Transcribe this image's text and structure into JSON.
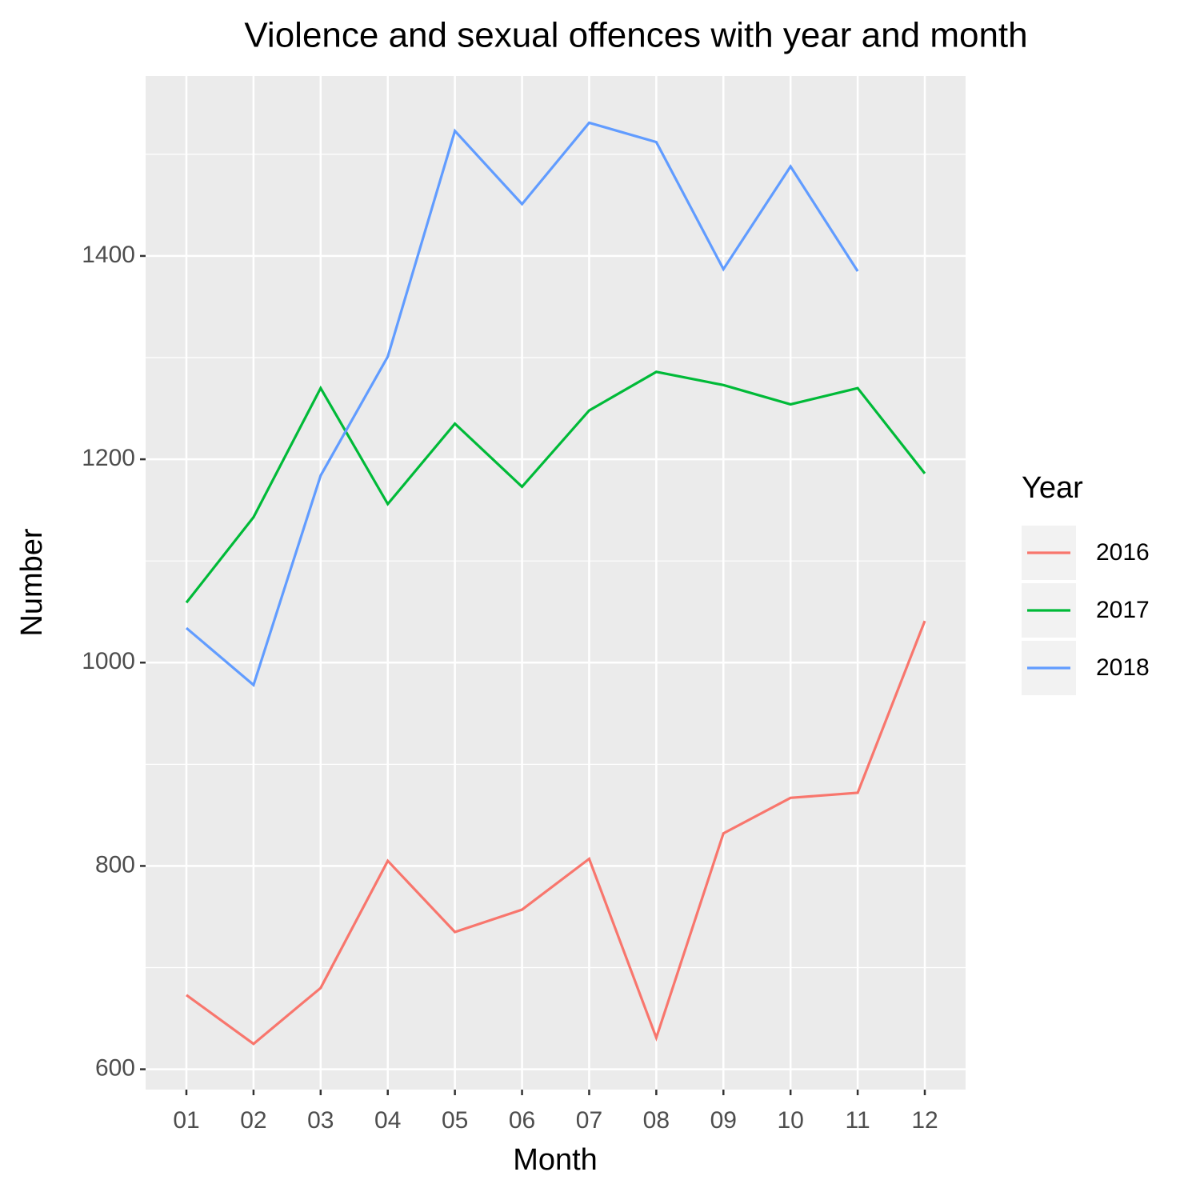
{
  "chart_data": {
    "type": "line",
    "title": "Violence and sexual offences with year and month",
    "x_label": "Month",
    "y_label": "Number",
    "categories": [
      "01",
      "02",
      "03",
      "04",
      "05",
      "06",
      "07",
      "08",
      "09",
      "10",
      "11",
      "12"
    ],
    "series": [
      {
        "name": "2016",
        "color": "#F8766D",
        "values": [
          673,
          625,
          680,
          805,
          735,
          757,
          807,
          631,
          832,
          867,
          872,
          1041
        ]
      },
      {
        "name": "2017",
        "color": "#00BA38",
        "values": [
          1059,
          1143,
          1270,
          1156,
          1235,
          1173,
          1248,
          1286,
          1273,
          1254,
          1270,
          1186
        ]
      },
      {
        "name": "2018",
        "color": "#619CFF",
        "values": [
          1034,
          978,
          1184,
          1301,
          1523,
          1451,
          1531,
          1512,
          1387,
          1488,
          1385,
          null
        ]
      }
    ],
    "legend_title": "Year",
    "legend": "right",
    "ylim": [
      580,
      1577
    ],
    "yticks": [
      600,
      800,
      1000,
      1200,
      1400
    ],
    "yminorticks": [
      700,
      900,
      1100,
      1300,
      1500
    ],
    "grid": true
  }
}
